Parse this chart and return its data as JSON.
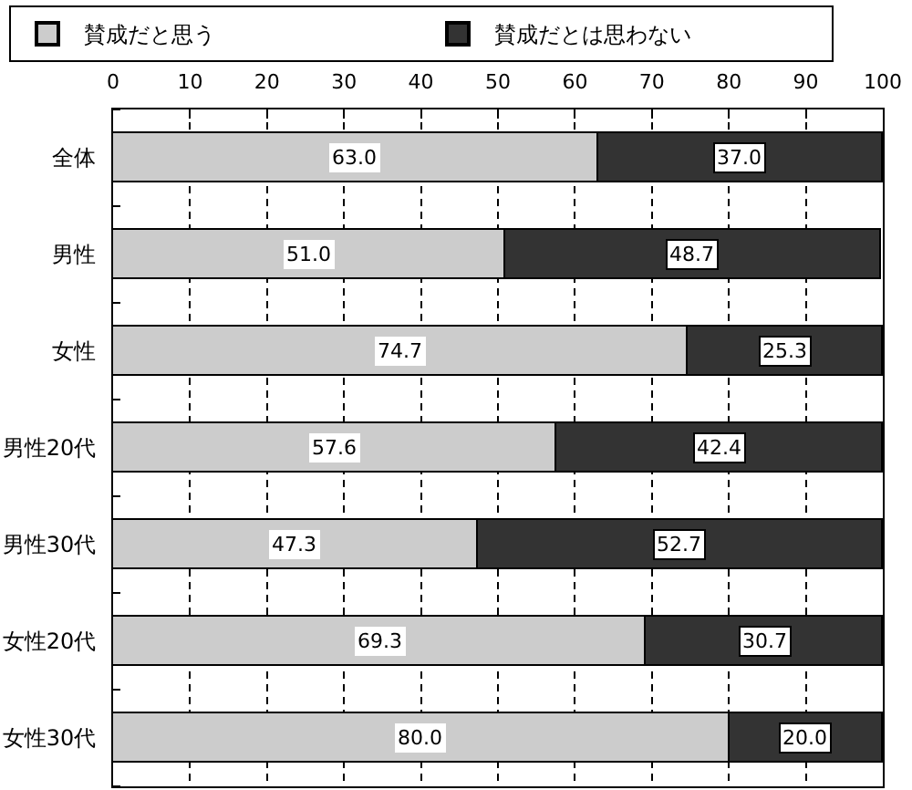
{
  "chart_data": {
    "type": "bar",
    "orientation": "horizontal",
    "stacked": true,
    "categories": [
      "全体",
      "男性",
      "女性",
      "男性20代",
      "男性30代",
      "女性20代",
      "女性30代"
    ],
    "series": [
      {
        "name": "賛成だと思う",
        "color": "#cccccc",
        "values": [
          63.0,
          51.0,
          74.7,
          57.6,
          47.3,
          69.3,
          80.0
        ],
        "value_labels": [
          "63.0",
          "51.0",
          "74.7",
          "57.6",
          "47.3",
          "69.3",
          "80.0"
        ]
      },
      {
        "name": "賛成だとは思わない",
        "color": "#333333",
        "values": [
          37.0,
          48.7,
          25.3,
          42.4,
          52.7,
          30.7,
          20.0
        ],
        "value_labels": [
          "37.0",
          "48.7",
          "25.3",
          "42.4",
          "52.7",
          "30.7",
          "20.0"
        ]
      }
    ],
    "xlim": [
      0,
      100
    ],
    "xticks": [
      0,
      10,
      20,
      30,
      40,
      50,
      60,
      70,
      80,
      90,
      100
    ],
    "grid": "x",
    "legend": "top"
  }
}
